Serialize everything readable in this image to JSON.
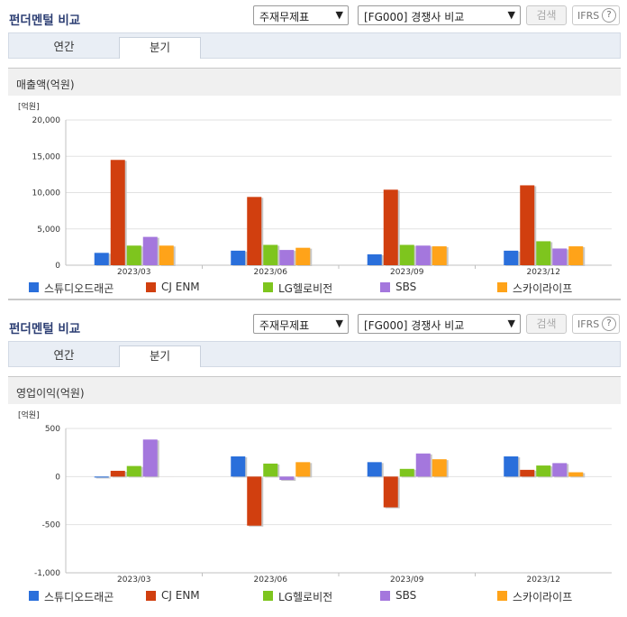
{
  "colors": {
    "series": [
      "#2a6fdb",
      "#d13f0f",
      "#7ec51e",
      "#a477dd",
      "#ffa319"
    ],
    "title": "#2c3e73"
  },
  "legend": [
    "스튜디오드래곤",
    "CJ ENM",
    "LG헬로비전",
    "SBS",
    "스카이라이프"
  ],
  "panels": [
    {
      "title": "펀더멘털 비교",
      "select_main": "주재무제표",
      "select_compare": "[FG000] 경쟁사 비교",
      "search_label": "검색",
      "ifrs_label": "IFRS",
      "help_icon": "?",
      "tabs": [
        "연간",
        "분기"
      ],
      "active_tab": 1,
      "section_title": "매출액(억원)",
      "unit": "[억원]"
    },
    {
      "title": "펀더멘털 비교",
      "select_main": "주재무제표",
      "select_compare": "[FG000] 경쟁사 비교",
      "search_label": "검색",
      "ifrs_label": "IFRS",
      "help_icon": "?",
      "tabs": [
        "연간",
        "분기"
      ],
      "active_tab": 1,
      "section_title": "영업이익(억원)",
      "unit": "[억원]"
    }
  ],
  "chart_data": [
    {
      "type": "bar",
      "categories": [
        "2023/03",
        "2023/06",
        "2023/09",
        "2023/12"
      ],
      "series": [
        {
          "name": "스튜디오드래곤",
          "values": [
            1700,
            2000,
            1500,
            2000
          ]
        },
        {
          "name": "CJ ENM",
          "values": [
            14500,
            9400,
            10400,
            11000
          ]
        },
        {
          "name": "LG헬로비전",
          "values": [
            2700,
            2800,
            2800,
            3300
          ]
        },
        {
          "name": "SBS",
          "values": [
            3900,
            2100,
            2700,
            2300
          ]
        },
        {
          "name": "스카이라이프",
          "values": [
            2700,
            2400,
            2600,
            2600
          ]
        }
      ],
      "ylim": [
        0,
        20000
      ],
      "yticks": [
        0,
        5000,
        10000,
        15000,
        20000
      ],
      "ytick_labels": [
        "0",
        "5,000",
        "10,000",
        "15,000",
        "20,000"
      ],
      "ylabel": "[억원]",
      "grid": true,
      "legend_position": "bottom"
    },
    {
      "type": "bar",
      "categories": [
        "2023/03",
        "2023/06",
        "2023/09",
        "2023/12"
      ],
      "series": [
        {
          "name": "스튜디오드래곤",
          "values": [
            -10,
            210,
            150,
            210
          ]
        },
        {
          "name": "CJ ENM",
          "values": [
            60,
            -510,
            -320,
            70
          ]
        },
        {
          "name": "LG헬로비전",
          "values": [
            110,
            135,
            80,
            115
          ]
        },
        {
          "name": "SBS",
          "values": [
            385,
            -35,
            240,
            140
          ]
        },
        {
          "name": "스카이라이프",
          "values": [
            0,
            150,
            180,
            45
          ]
        }
      ],
      "ylim": [
        -1000,
        500
      ],
      "yticks": [
        -1000,
        -500,
        0,
        500
      ],
      "ytick_labels": [
        "-1,000",
        "-500",
        "0",
        "500"
      ],
      "ylabel": "[억원]",
      "grid": true,
      "legend_position": "bottom"
    }
  ]
}
